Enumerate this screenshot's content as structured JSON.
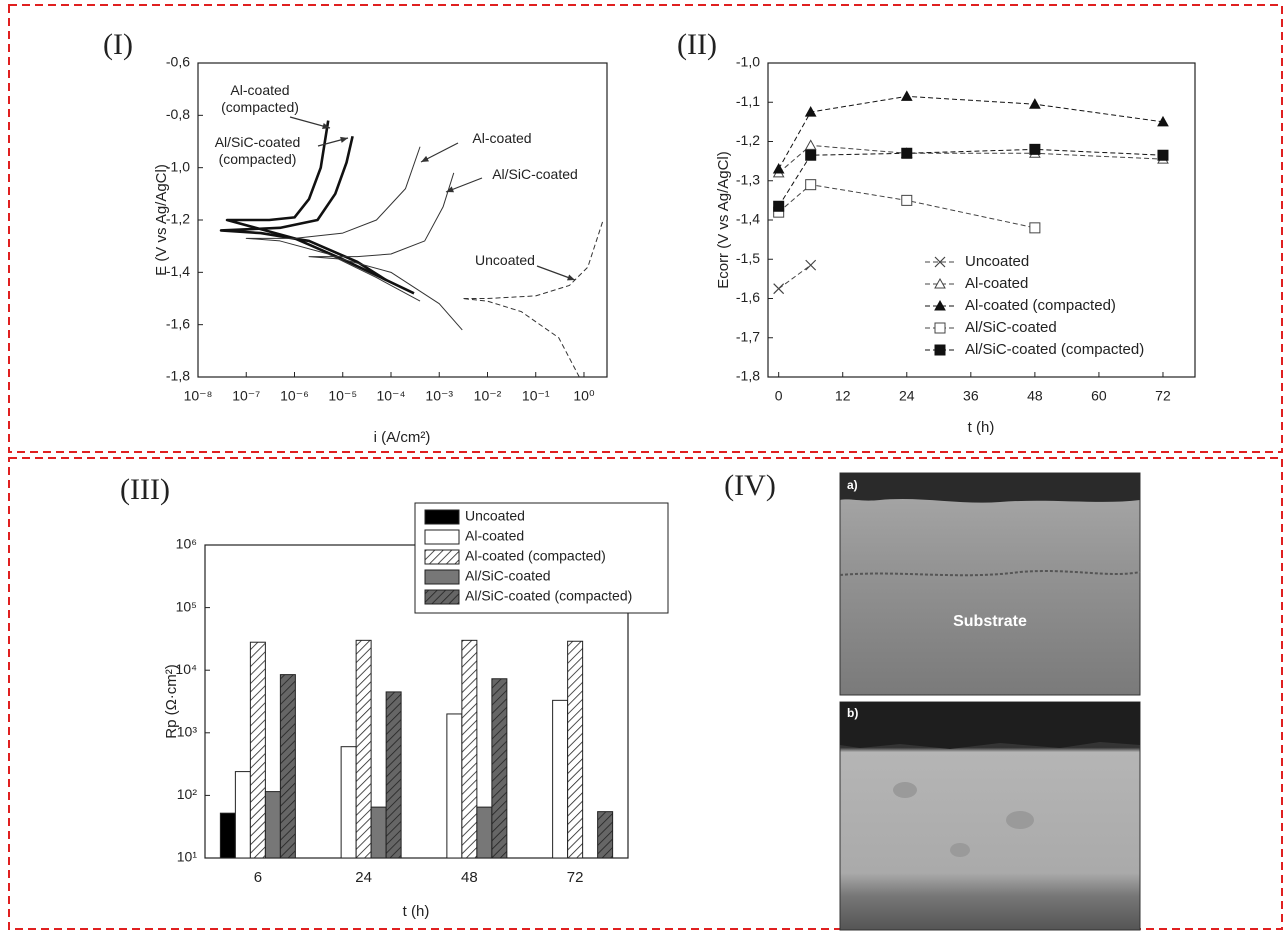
{
  "chart_data": [
    {
      "type": "line",
      "panel_label": "(I)",
      "x_label": "i (A/cm²)",
      "y_label": "E (V vs Ag/AgCl)",
      "xlog": true,
      "xlim": [
        1e-08,
        3
      ],
      "ylim": [
        -1.8,
        -0.6
      ],
      "xticks": [
        {
          "value": 1e-08,
          "label": "10⁻⁸"
        },
        {
          "value": 1e-07,
          "label": "10⁻⁷"
        },
        {
          "value": 1e-06,
          "label": "10⁻⁶"
        },
        {
          "value": 1e-05,
          "label": "10⁻⁵"
        },
        {
          "value": 0.0001,
          "label": "10⁻⁴"
        },
        {
          "value": 0.001,
          "label": "10⁻³"
        },
        {
          "value": 0.01,
          "label": "10⁻²"
        },
        {
          "value": 0.1,
          "label": "10⁻¹"
        },
        {
          "value": 1,
          "label": "10⁰"
        }
      ],
      "yticks": [
        {
          "value": -0.6,
          "label": "-0,6"
        },
        {
          "value": -0.8,
          "label": "-0,8"
        },
        {
          "value": -1.0,
          "label": "-1,0"
        },
        {
          "value": -1.2,
          "label": "-1,2"
        },
        {
          "value": -1.4,
          "label": "-1,4"
        },
        {
          "value": -1.6,
          "label": "-1,6"
        },
        {
          "value": -1.8,
          "label": "-1,8"
        }
      ],
      "series": [
        {
          "name": "Al-coated (compacted)",
          "color": "#111111",
          "line_width": 2.6,
          "dashed": false,
          "x": [
            0.0003,
            1e-05,
            1e-06,
            1e-07,
            4e-08,
            3e-07,
            1e-06,
            2e-06,
            3.5e-06,
            5e-06
          ],
          "values": [
            -1.48,
            -1.35,
            -1.27,
            -1.22,
            -1.2,
            -1.2,
            -1.19,
            -1.12,
            -1.0,
            -0.82
          ]
        },
        {
          "name": "Al/SiC-coated (compacted)",
          "color": "#111111",
          "line_width": 2.6,
          "dashed": false,
          "x": [
            8e-05,
            2e-05,
            2e-06,
            2e-07,
            3e-08,
            5e-07,
            3e-06,
            7e-06,
            1.2e-05,
            1.6e-05
          ],
          "values": [
            -1.43,
            -1.36,
            -1.28,
            -1.25,
            -1.24,
            -1.23,
            -1.2,
            -1.1,
            -0.98,
            -0.88
          ]
        },
        {
          "name": "Al-coated",
          "color": "#333333",
          "line_width": 1,
          "dashed": false,
          "x": [
            0.0004,
            5e-05,
            5e-06,
            5e-07,
            1e-07,
            1e-06,
            1e-05,
            5e-05,
            0.0002,
            0.0004
          ],
          "values": [
            -1.51,
            -1.42,
            -1.33,
            -1.28,
            -1.27,
            -1.27,
            -1.25,
            -1.2,
            -1.08,
            -0.92
          ]
        },
        {
          "name": "Al/SiC-coated",
          "color": "#333333",
          "line_width": 1,
          "dashed": false,
          "x": [
            0.003,
            0.001,
            0.0001,
            1e-05,
            2e-06,
            2e-05,
            0.0001,
            0.0005,
            0.0012,
            0.002
          ],
          "values": [
            -1.62,
            -1.52,
            -1.4,
            -1.35,
            -1.34,
            -1.34,
            -1.33,
            -1.28,
            -1.15,
            -1.02
          ]
        },
        {
          "name": "Uncoated",
          "color": "#333333",
          "line_width": 1,
          "dashed": true,
          "x": [
            0.8,
            0.3,
            0.05,
            0.01,
            0.003,
            0.01,
            0.1,
            0.5,
            1.2,
            2.5
          ],
          "values": [
            -1.8,
            -1.65,
            -1.55,
            -1.51,
            -1.5,
            -1.5,
            -1.49,
            -1.45,
            -1.38,
            -1.2
          ]
        }
      ]
    },
    {
      "type": "line",
      "panel_label": "(II)",
      "x_label": "t (h)",
      "y_label": "Ecorr (V vs Ag/AgCl)",
      "x": [
        0,
        6,
        24,
        48,
        72
      ],
      "xlim": [
        -2,
        78
      ],
      "ylim": [
        -1.8,
        -1.0
      ],
      "xticks": [
        0,
        12,
        24,
        36,
        48,
        60,
        72
      ],
      "yticks": [
        {
          "value": -1.0,
          "label": "-1,0"
        },
        {
          "value": -1.1,
          "label": "-1,1"
        },
        {
          "value": -1.2,
          "label": "-1,2"
        },
        {
          "value": -1.3,
          "label": "-1,3"
        },
        {
          "value": -1.4,
          "label": "-1,4"
        },
        {
          "value": -1.5,
          "label": "-1,5"
        },
        {
          "value": -1.6,
          "label": "-1,6"
        },
        {
          "value": -1.7,
          "label": "-1,7"
        },
        {
          "value": -1.8,
          "label": "-1,8"
        }
      ],
      "legend": "lower right",
      "series": [
        {
          "name": "Uncoated",
          "color": "#444444",
          "marker": "x",
          "dashed": true,
          "values": [
            -1.575,
            -1.515,
            null,
            null,
            null
          ]
        },
        {
          "name": "Al-coated",
          "color": "#444444",
          "marker": "triangle-open",
          "dashed": true,
          "values": [
            -1.28,
            -1.21,
            -1.23,
            -1.23,
            -1.245
          ]
        },
        {
          "name": "Al-coated (compacted)",
          "color": "#111111",
          "marker": "triangle",
          "dashed": true,
          "values": [
            -1.27,
            -1.125,
            -1.085,
            -1.105,
            -1.15
          ]
        },
        {
          "name": "Al/SiC-coated",
          "color": "#444444",
          "marker": "square-open",
          "dashed": true,
          "values": [
            -1.38,
            -1.31,
            -1.35,
            -1.42,
            null
          ]
        },
        {
          "name": "Al/SiC-coated (compacted)",
          "color": "#111111",
          "marker": "square",
          "dashed": true,
          "values": [
            -1.365,
            -1.235,
            -1.23,
            -1.22,
            -1.235
          ]
        }
      ]
    },
    {
      "type": "bar",
      "panel_label": "(III)",
      "x_label": "t (h)",
      "y_label": "Rp (Ω·cm²)",
      "categories": [
        "6",
        "24",
        "48",
        "72"
      ],
      "ylog": true,
      "ylim": [
        10,
        1000000
      ],
      "yticks": [
        {
          "value": 10,
          "label": "10¹"
        },
        {
          "value": 100,
          "label": "10²"
        },
        {
          "value": 1000,
          "label": "10³"
        },
        {
          "value": 10000,
          "label": "10⁴"
        },
        {
          "value": 100000,
          "label": "10⁵"
        },
        {
          "value": 1000000,
          "label": "10⁶"
        }
      ],
      "legend": "top right",
      "series": [
        {
          "name": "Uncoated",
          "color": "#000000",
          "hatch": false,
          "values": [
            52,
            null,
            null,
            null
          ]
        },
        {
          "name": "Al-coated",
          "color": "#ffffff",
          "hatch": false,
          "values": [
            240,
            600,
            2000,
            3300
          ]
        },
        {
          "name": "Al-coated (compacted)",
          "color": "#ffffff",
          "hatch": true,
          "values": [
            28000,
            30000,
            30000,
            29000
          ]
        },
        {
          "name": "Al/SiC-coated",
          "color": "#777777",
          "hatch": false,
          "values": [
            115,
            65,
            65,
            null
          ]
        },
        {
          "name": "Al/SiC-coated (compacted)",
          "color": "#666666",
          "hatch": true,
          "values": [
            8500,
            4500,
            7300,
            55
          ]
        }
      ]
    }
  ],
  "image_panel": {
    "label": "(IV)",
    "images": [
      {
        "label": "a)",
        "caption": "Substrate"
      },
      {
        "label": "b)"
      }
    ]
  }
}
